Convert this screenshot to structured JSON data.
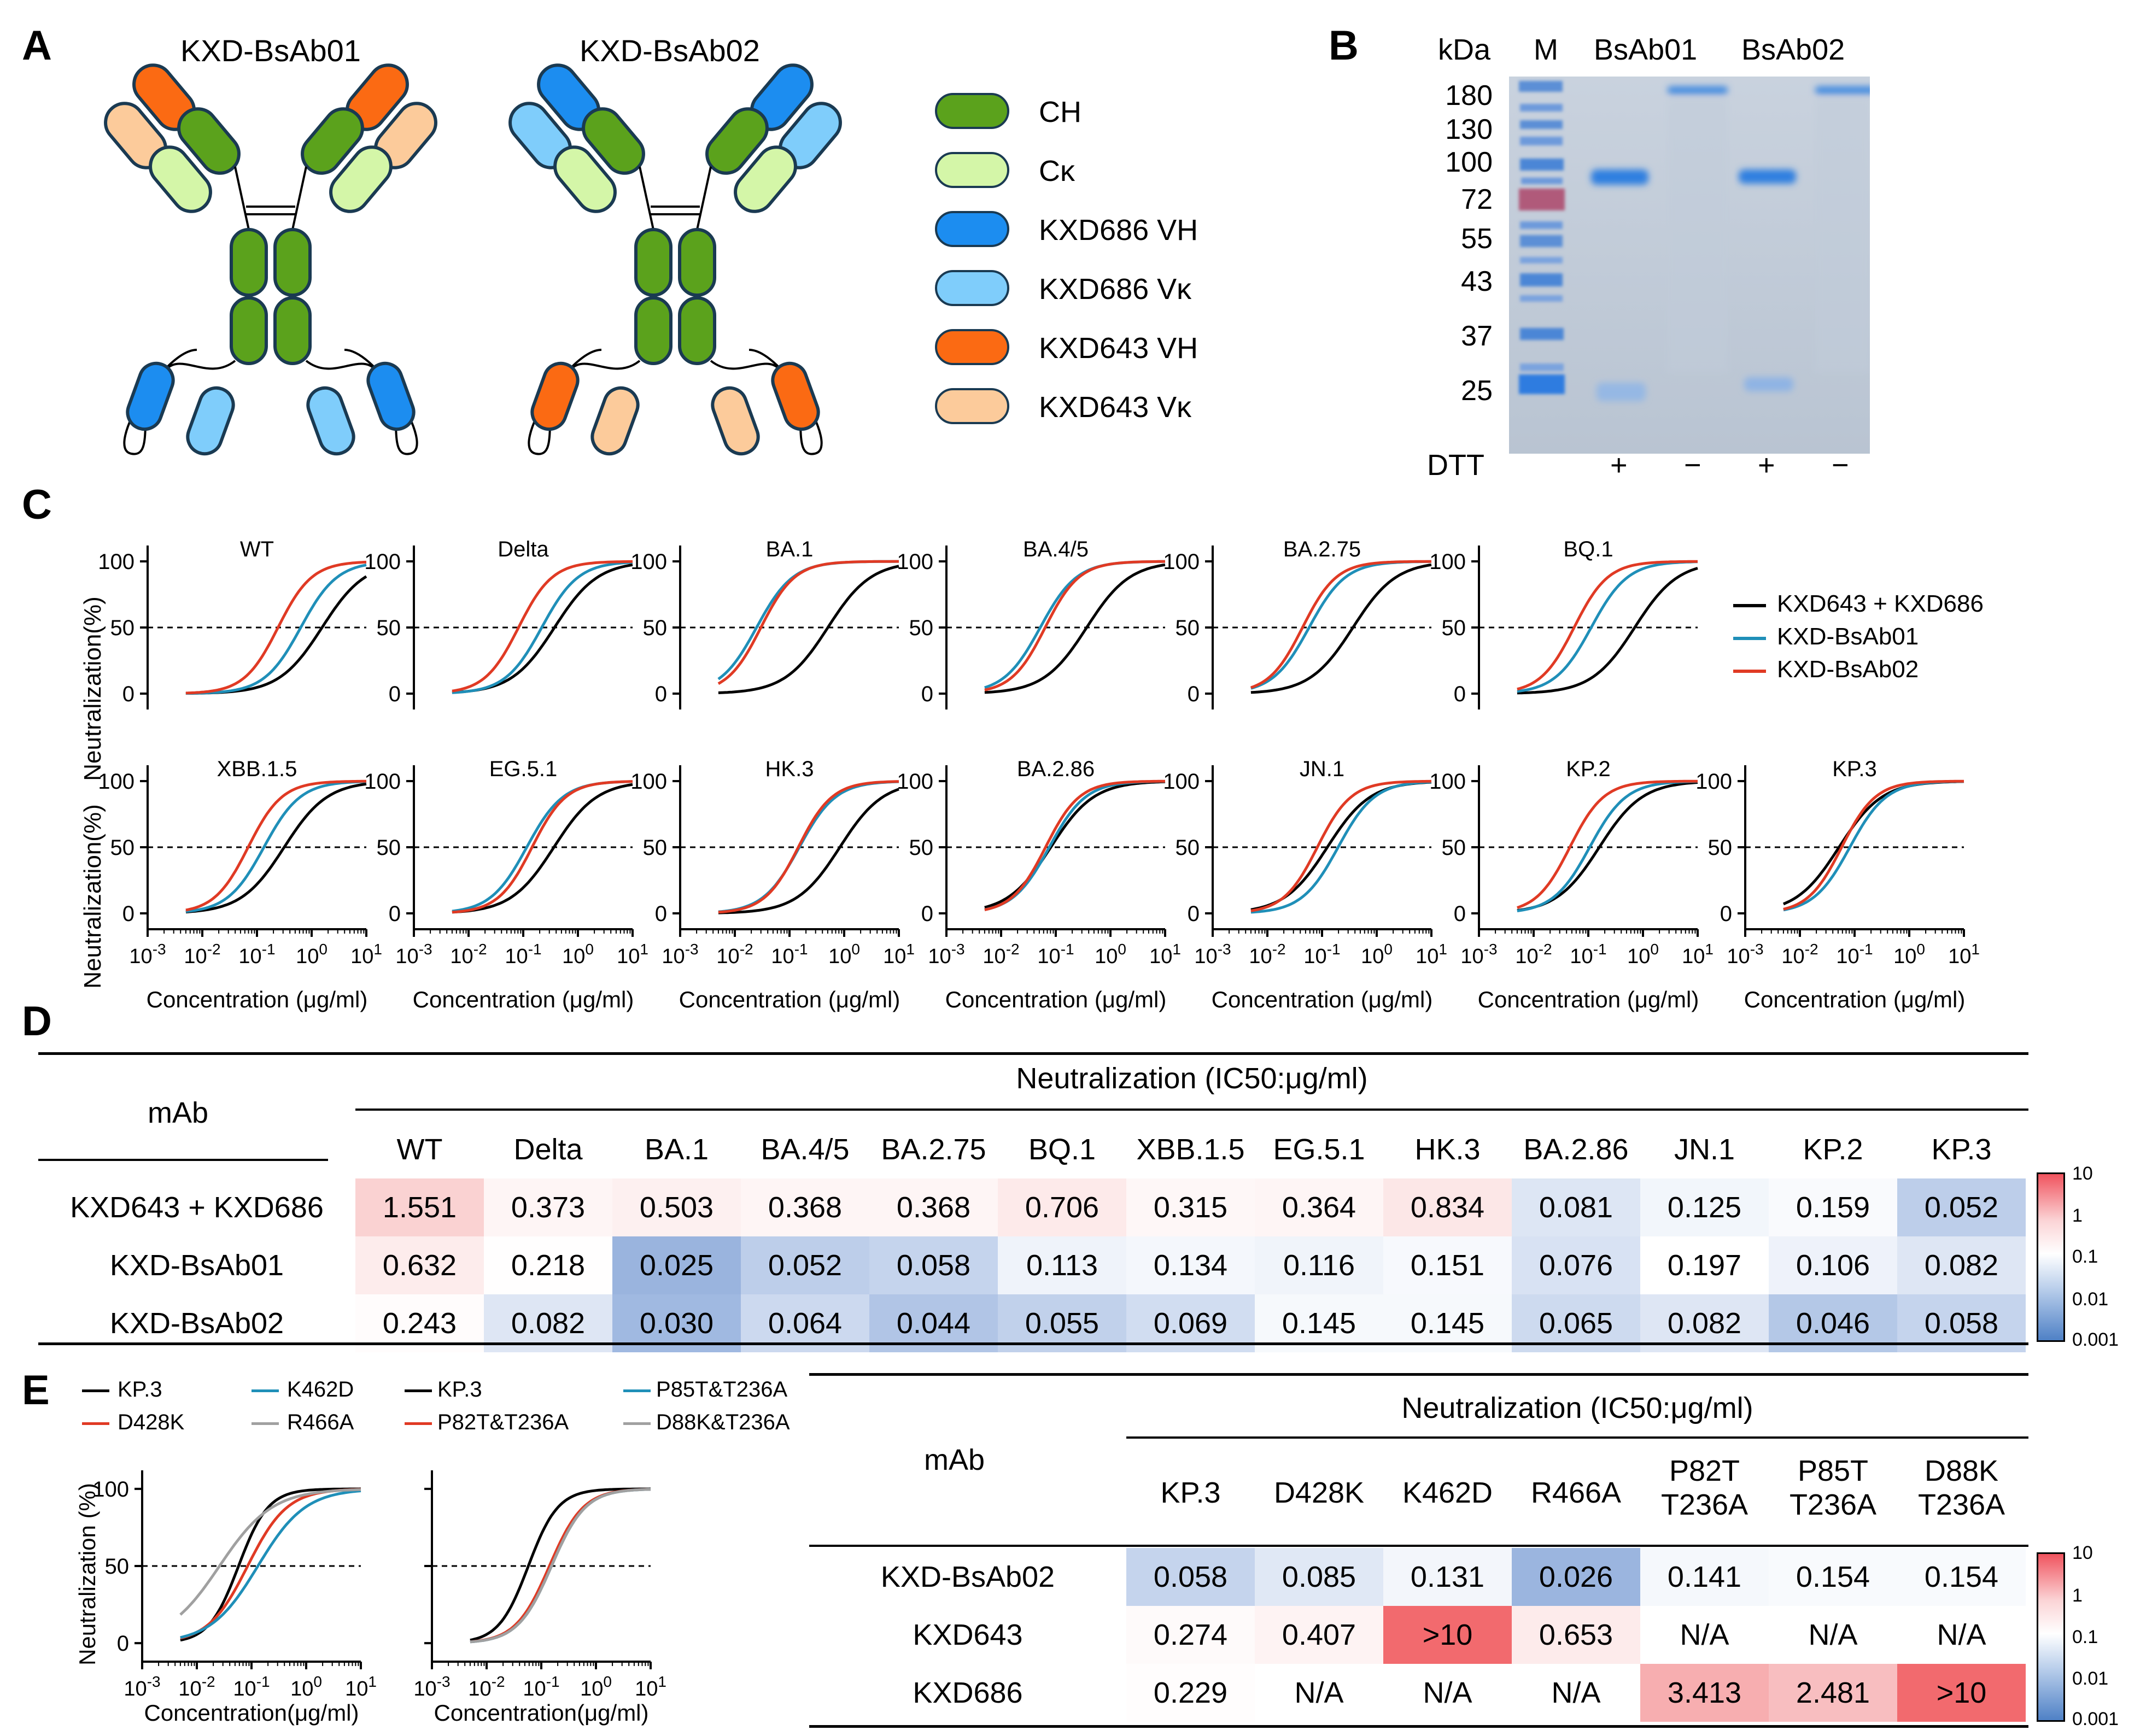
{
  "panels": {
    "A": "A",
    "B": "B",
    "C": "C",
    "D": "D",
    "E": "E"
  },
  "panelA": {
    "titles": [
      "KXD-BsAb01",
      "KXD-BsAb02"
    ],
    "legend": [
      {
        "label": "CH",
        "color": "#5ba21c"
      },
      {
        "label": "Cκ",
        "color": "#d4f6a8"
      },
      {
        "label": "KXD686 VH",
        "color": "#1c8df0"
      },
      {
        "label": "KXD686 Vκ",
        "color": "#7fcdfb"
      },
      {
        "label": "KXD643 VH",
        "color": "#fb6a13"
      },
      {
        "label": "KXD643 Vκ",
        "color": "#fccb9b"
      }
    ]
  },
  "panelB": {
    "kda_label": "kDa",
    "lanes": [
      "M",
      "BsAb01",
      "BsAb02"
    ],
    "markers": [
      "180",
      "130",
      "100",
      "72",
      "55",
      "43",
      "37",
      "25"
    ],
    "dtt_label": "DTT",
    "dtt": [
      "+",
      "−",
      "+",
      "−"
    ]
  },
  "panelC": {
    "ylabel": "Neutralization(%)",
    "xlabel": "Concentration (μg/ml)",
    "yticks": [
      "0",
      "50",
      "100"
    ],
    "legend": [
      {
        "label": "KXD643 + KXD686",
        "color": "#000000"
      },
      {
        "label": "KXD-BsAb01",
        "color": "#1f8fb8"
      },
      {
        "label": "KXD-BsAb02",
        "color": "#e03a24"
      }
    ],
    "row1": [
      "WT",
      "Delta",
      "BA.1",
      "BA.4/5",
      "BA.2.75",
      "BQ.1"
    ],
    "row2": [
      "XBB.1.5",
      "EG.5.1",
      "HK.3",
      "BA.2.86",
      "JN.1",
      "KP.2",
      "KP.3"
    ]
  },
  "panelD": {
    "row_header": "mAb",
    "title": "Neutralization (IC50:μg/ml)",
    "columns": [
      "WT",
      "Delta",
      "BA.1",
      "BA.4/5",
      "BA.2.75",
      "BQ.1",
      "XBB.1.5",
      "EG.5.1",
      "HK.3",
      "BA.2.86",
      "JN.1",
      "KP.2",
      "KP.3"
    ],
    "rows": [
      {
        "name": "KXD643 + KXD686",
        "values": [
          "1.551",
          "0.373",
          "0.503",
          "0.368",
          "0.368",
          "0.706",
          "0.315",
          "0.364",
          "0.834",
          "0.081",
          "0.125",
          "0.159",
          "0.052"
        ]
      },
      {
        "name": "KXD-BsAb01",
        "values": [
          "0.632",
          "0.218",
          "0.025",
          "0.052",
          "0.058",
          "0.113",
          "0.134",
          "0.116",
          "0.151",
          "0.076",
          "0.197",
          "0.106",
          "0.082"
        ]
      },
      {
        "name": "KXD-BsAb02",
        "values": [
          "0.243",
          "0.082",
          "0.030",
          "0.064",
          "0.044",
          "0.055",
          "0.069",
          "0.145",
          "0.145",
          "0.065",
          "0.082",
          "0.046",
          "0.058"
        ]
      }
    ],
    "scale": [
      "10",
      "1",
      "0.1",
      "0.01",
      "0.001"
    ]
  },
  "panelE": {
    "legend1": [
      {
        "label": "KP.3",
        "color": "#000000"
      },
      {
        "label": "K462D",
        "color": "#1f8fb8"
      },
      {
        "label": "D428K",
        "color": "#e03a24"
      },
      {
        "label": "R466A",
        "color": "#a0a0a0"
      }
    ],
    "legend2": [
      {
        "label": "KP.3",
        "color": "#000000"
      },
      {
        "label": "P85T&T236A",
        "color": "#1f8fb8"
      },
      {
        "label": "P82T&T236A",
        "color": "#e03a24"
      },
      {
        "label": "D88K&T236A",
        "color": "#a0a0a0"
      }
    ],
    "ylabel": "Neutralization (%)",
    "xlabel": "Concentration(μg/ml)",
    "yticks": [
      "0",
      "50",
      "100"
    ],
    "row_header": "mAb",
    "title": "Neutralization (IC50:μg/ml)",
    "columns": [
      [
        "KP.3"
      ],
      [
        "D428K"
      ],
      [
        "K462D"
      ],
      [
        "R466A"
      ],
      [
        "P82T",
        "T236A"
      ],
      [
        "P85T",
        "T236A"
      ],
      [
        "D88K",
        "T236A"
      ]
    ],
    "rows": [
      {
        "name": "KXD-BsAb02",
        "values": [
          "0.058",
          "0.085",
          "0.131",
          "0.026",
          "0.141",
          "0.154",
          "0.154"
        ]
      },
      {
        "name": "KXD643",
        "values": [
          "0.274",
          "0.407",
          ">10",
          "0.653",
          "N/A",
          "N/A",
          "N/A"
        ]
      },
      {
        "name": "KXD686",
        "values": [
          "0.229",
          "N/A",
          "N/A",
          "N/A",
          "3.413",
          "2.481",
          ">10"
        ]
      }
    ],
    "scale": [
      "10",
      "1",
      "0.1",
      "0.01",
      "0.001"
    ]
  },
  "chart_data": [
    {
      "type": "line",
      "title": "Panel C neutralization curves (IC50 in μg/ml; xlim log10 -3..1; ylim 0..100)",
      "series_names": [
        "KXD643 + KXD686",
        "KXD-BsAb01",
        "KXD-BsAb02"
      ],
      "curves": [
        {
          "variant": "WT",
          "ic50": [
            1.551,
            0.632,
            0.243
          ]
        },
        {
          "variant": "Delta",
          "ic50": [
            0.373,
            0.218,
            0.082
          ]
        },
        {
          "variant": "BA.1",
          "ic50": [
            0.503,
            0.025,
            0.03
          ]
        },
        {
          "variant": "BA.4/5",
          "ic50": [
            0.368,
            0.052,
            0.064
          ]
        },
        {
          "variant": "BA.2.75",
          "ic50": [
            0.368,
            0.058,
            0.044
          ]
        },
        {
          "variant": "BQ.1",
          "ic50": [
            0.706,
            0.113,
            0.055
          ]
        },
        {
          "variant": "XBB.1.5",
          "ic50": [
            0.315,
            0.134,
            0.069
          ]
        },
        {
          "variant": "EG.5.1",
          "ic50": [
            0.364,
            0.116,
            0.145
          ]
        },
        {
          "variant": "HK.3",
          "ic50": [
            0.834,
            0.151,
            0.145
          ]
        },
        {
          "variant": "BA.2.86",
          "ic50": [
            0.081,
            0.076,
            0.065
          ]
        },
        {
          "variant": "JN.1",
          "ic50": [
            0.125,
            0.197,
            0.082
          ]
        },
        {
          "variant": "KP.2",
          "ic50": [
            0.159,
            0.106,
            0.046
          ]
        },
        {
          "variant": "KP.3",
          "ic50": [
            0.052,
            0.082,
            0.058
          ]
        }
      ]
    },
    {
      "type": "line",
      "title": "Panel E neutralization curves (KXD-BsAb02)",
      "left": [
        {
          "name": "KP.3",
          "ic50": 0.058
        },
        {
          "name": "D428K",
          "ic50": 0.085
        },
        {
          "name": "K462D",
          "ic50": 0.131
        },
        {
          "name": "R466A",
          "ic50": 0.026
        }
      ],
      "right": [
        {
          "name": "KP.3",
          "ic50": 0.058
        },
        {
          "name": "P82T&T236A",
          "ic50": 0.141
        },
        {
          "name": "P85T&T236A",
          "ic50": 0.154
        },
        {
          "name": "D88K&T236A",
          "ic50": 0.154
        }
      ]
    }
  ]
}
